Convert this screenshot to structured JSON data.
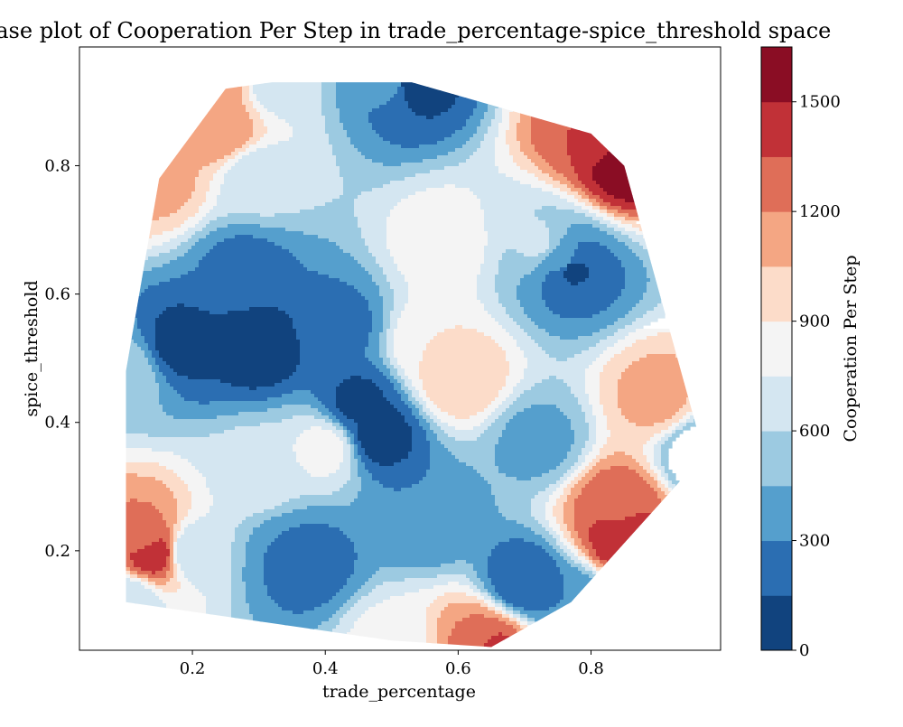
{
  "chart_data": {
    "type": "heatmap",
    "subtype": "filled contour",
    "title": "Phase plot of Cooperation Per Step in trade_percentage-spice_threshold space",
    "xlabel": "trade_percentage",
    "ylabel": "spice_threshold",
    "xlim": [
      0.03,
      0.995
    ],
    "ylim": [
      0.045,
      0.985
    ],
    "xticks": [
      0.2,
      0.4,
      0.6,
      0.8
    ],
    "xtick_labels": [
      "0.2",
      "0.4",
      "0.6",
      "0.8"
    ],
    "yticks": [
      0.2,
      0.4,
      0.6,
      0.8
    ],
    "ytick_labels": [
      "0.2",
      "0.4",
      "0.6",
      "0.8"
    ],
    "grid": false,
    "colorbar": {
      "label": "Cooperation Per Step",
      "levels": [
        0,
        150,
        300,
        450,
        600,
        750,
        900,
        1050,
        1200,
        1350,
        1500,
        1650
      ],
      "ticks": [
        0,
        300,
        600,
        900,
        1200,
        1500
      ],
      "tick_labels": [
        "0",
        "300",
        "600",
        "900",
        "1200",
        "1500"
      ],
      "colors": [
        "#11437e",
        "#2b6eb2",
        "#559fcd",
        "#9ccae1",
        "#d4e6f1",
        "#f4f4f4",
        "#fcdcc9",
        "#f4a683",
        "#df6e58",
        "#c13137",
        "#8a0d24"
      ]
    },
    "sample_points": [
      {
        "x": 0.1,
        "y": 0.48,
        "value": 550
      },
      {
        "x": 0.15,
        "y": 0.78,
        "value": 1100
      },
      {
        "x": 0.25,
        "y": 0.92,
        "value": 1100
      },
      {
        "x": 0.24,
        "y": 0.86,
        "value": 1200
      },
      {
        "x": 0.32,
        "y": 0.93,
        "value": 650
      },
      {
        "x": 0.3,
        "y": 0.78,
        "value": 650
      },
      {
        "x": 0.18,
        "y": 0.52,
        "value": 100
      },
      {
        "x": 0.3,
        "y": 0.52,
        "value": 50
      },
      {
        "x": 0.28,
        "y": 0.64,
        "value": 250
      },
      {
        "x": 0.42,
        "y": 0.55,
        "value": 250
      },
      {
        "x": 0.5,
        "y": 0.93,
        "value": 350
      },
      {
        "x": 0.53,
        "y": 0.93,
        "value": 50
      },
      {
        "x": 0.45,
        "y": 0.43,
        "value": 120
      },
      {
        "x": 0.48,
        "y": 0.38,
        "value": 80
      },
      {
        "x": 0.58,
        "y": 0.68,
        "value": 850
      },
      {
        "x": 0.56,
        "y": 0.52,
        "value": 900
      },
      {
        "x": 0.6,
        "y": 0.47,
        "value": 1050
      },
      {
        "x": 0.55,
        "y": 0.25,
        "value": 300
      },
      {
        "x": 0.72,
        "y": 0.68,
        "value": 620
      },
      {
        "x": 0.76,
        "y": 0.65,
        "value": 380
      },
      {
        "x": 0.77,
        "y": 0.64,
        "value": 100
      },
      {
        "x": 0.85,
        "y": 0.8,
        "value": 1600
      },
      {
        "x": 0.8,
        "y": 0.85,
        "value": 1350
      },
      {
        "x": 0.97,
        "y": 0.35,
        "value": 300
      },
      {
        "x": 0.85,
        "y": 0.22,
        "value": 1500
      },
      {
        "x": 0.84,
        "y": 0.27,
        "value": 1300
      },
      {
        "x": 0.9,
        "y": 0.44,
        "value": 1100
      },
      {
        "x": 0.72,
        "y": 0.37,
        "value": 400
      },
      {
        "x": 0.14,
        "y": 0.2,
        "value": 1500
      },
      {
        "x": 0.13,
        "y": 0.22,
        "value": 1200
      },
      {
        "x": 0.2,
        "y": 0.2,
        "value": 600
      },
      {
        "x": 0.35,
        "y": 0.19,
        "value": 300
      },
      {
        "x": 0.37,
        "y": 0.18,
        "value": 200
      },
      {
        "x": 0.1,
        "y": 0.12,
        "value": 600
      },
      {
        "x": 0.3,
        "y": 0.32,
        "value": 700
      },
      {
        "x": 0.4,
        "y": 0.36,
        "value": 800
      },
      {
        "x": 0.63,
        "y": 0.06,
        "value": 1200
      },
      {
        "x": 0.65,
        "y": 0.05,
        "value": 1400
      },
      {
        "x": 0.5,
        "y": 0.06,
        "value": 800
      },
      {
        "x": 0.77,
        "y": 0.12,
        "value": 300
      },
      {
        "x": 0.7,
        "y": 0.15,
        "value": 150
      }
    ]
  }
}
